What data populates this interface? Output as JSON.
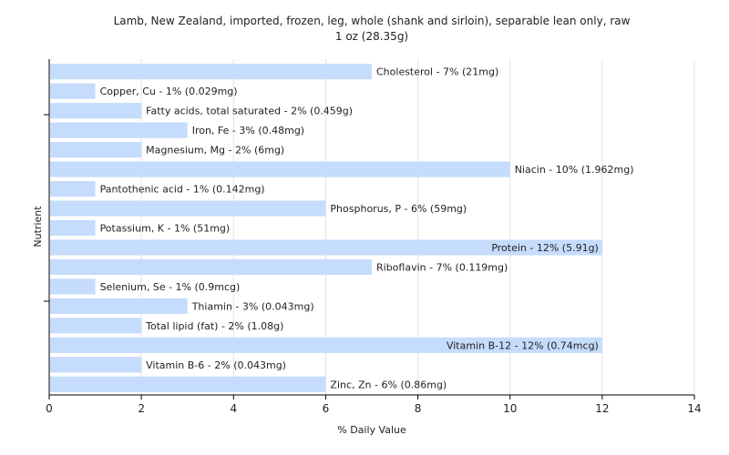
{
  "chart_data": {
    "type": "bar",
    "orientation": "horizontal",
    "title": "Lamb, New Zealand, imported, frozen, leg, whole (shank and sirloin), separable lean only, raw",
    "subtitle": "1 oz (28.35g)",
    "xlabel": "% Daily Value",
    "ylabel": "Nutrient",
    "xlim": [
      0,
      14
    ],
    "xticks": [
      0,
      2,
      4,
      6,
      8,
      10,
      12,
      14
    ],
    "grid": true,
    "bar_color": "#c6dcfc",
    "categories": [
      "Cholesterol",
      "Copper, Cu",
      "Fatty acids, total saturated",
      "Iron, Fe",
      "Magnesium, Mg",
      "Niacin",
      "Pantothenic acid",
      "Phosphorus, P",
      "Potassium, K",
      "Protein",
      "Riboflavin",
      "Selenium, Se",
      "Thiamin",
      "Total lipid (fat)",
      "Vitamin B-12",
      "Vitamin B-6",
      "Zinc, Zn"
    ],
    "values": [
      7,
      1,
      2,
      3,
      2,
      10,
      1,
      6,
      1,
      12,
      7,
      1,
      3,
      2,
      12,
      2,
      6
    ],
    "labels": [
      "Cholesterol - 7% (21mg)",
      "Copper, Cu - 1% (0.029mg)",
      "Fatty acids, total saturated - 2% (0.459g)",
      "Iron, Fe - 3% (0.48mg)",
      "Magnesium, Mg - 2% (6mg)",
      "Niacin - 10% (1.962mg)",
      "Pantothenic acid - 1% (0.142mg)",
      "Phosphorus, P - 6% (59mg)",
      "Potassium, K - 1% (51mg)",
      "Protein - 12% (5.91g)",
      "Riboflavin - 7% (0.119mg)",
      "Selenium, Se - 1% (0.9mcg)",
      "Thiamin - 3% (0.043mg)",
      "Total lipid (fat) - 2% (1.08g)",
      "Vitamin B-12 - 12% (0.74mcg)",
      "Vitamin B-6 - 2% (0.043mg)",
      "Zinc, Zn - 6% (0.86mg)"
    ]
  }
}
